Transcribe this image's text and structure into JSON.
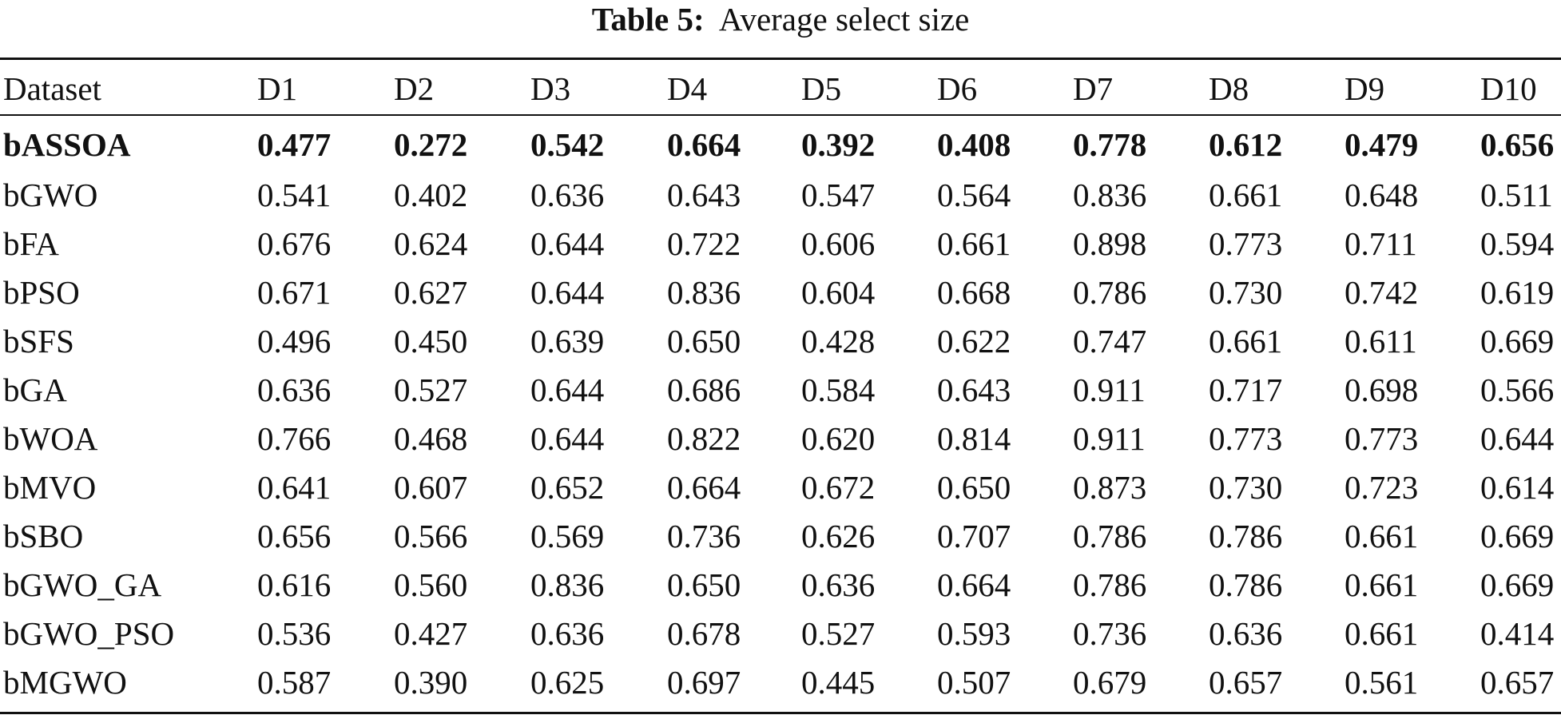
{
  "caption": {
    "label": "Table 5:",
    "title": "Average select size"
  },
  "table": {
    "headers": [
      "Dataset",
      "D1",
      "D2",
      "D3",
      "D4",
      "D5",
      "D6",
      "D7",
      "D8",
      "D9",
      "D10"
    ],
    "rows": [
      {
        "name": "bASSOA",
        "values": [
          "0.477",
          "0.272",
          "0.542",
          "0.664",
          "0.392",
          "0.408",
          "0.778",
          "0.612",
          "0.479",
          "0.656"
        ],
        "bold": true
      },
      {
        "name": "bGWO",
        "values": [
          "0.541",
          "0.402",
          "0.636",
          "0.643",
          "0.547",
          "0.564",
          "0.836",
          "0.661",
          "0.648",
          "0.511"
        ]
      },
      {
        "name": "bFA",
        "values": [
          "0.676",
          "0.624",
          "0.644",
          "0.722",
          "0.606",
          "0.661",
          "0.898",
          "0.773",
          "0.711",
          "0.594"
        ]
      },
      {
        "name": "bPSO",
        "values": [
          "0.671",
          "0.627",
          "0.644",
          "0.836",
          "0.604",
          "0.668",
          "0.786",
          "0.730",
          "0.742",
          "0.619"
        ]
      },
      {
        "name": "bSFS",
        "values": [
          "0.496",
          "0.450",
          "0.639",
          "0.650",
          "0.428",
          "0.622",
          "0.747",
          "0.661",
          "0.611",
          "0.669"
        ]
      },
      {
        "name": "bGA",
        "values": [
          "0.636",
          "0.527",
          "0.644",
          "0.686",
          "0.584",
          "0.643",
          "0.911",
          "0.717",
          "0.698",
          "0.566"
        ]
      },
      {
        "name": "bWOA",
        "values": [
          "0.766",
          "0.468",
          "0.644",
          "0.822",
          "0.620",
          "0.814",
          "0.911",
          "0.773",
          "0.773",
          "0.644"
        ]
      },
      {
        "name": "bMVO",
        "values": [
          "0.641",
          "0.607",
          "0.652",
          "0.664",
          "0.672",
          "0.650",
          "0.873",
          "0.730",
          "0.723",
          "0.614"
        ]
      },
      {
        "name": "bSBO",
        "values": [
          "0.656",
          "0.566",
          "0.569",
          "0.736",
          "0.626",
          "0.707",
          "0.786",
          "0.786",
          "0.661",
          "0.669"
        ]
      },
      {
        "name": "bGWO_GA",
        "values": [
          "0.616",
          "0.560",
          "0.836",
          "0.650",
          "0.636",
          "0.664",
          "0.786",
          "0.786",
          "0.661",
          "0.669"
        ]
      },
      {
        "name": "bGWO_PSO",
        "values": [
          "0.536",
          "0.427",
          "0.636",
          "0.678",
          "0.527",
          "0.593",
          "0.736",
          "0.636",
          "0.661",
          "0.414"
        ]
      },
      {
        "name": "bMGWO",
        "values": [
          "0.587",
          "0.390",
          "0.625",
          "0.697",
          "0.445",
          "0.507",
          "0.679",
          "0.657",
          "0.561",
          "0.657"
        ]
      }
    ]
  }
}
